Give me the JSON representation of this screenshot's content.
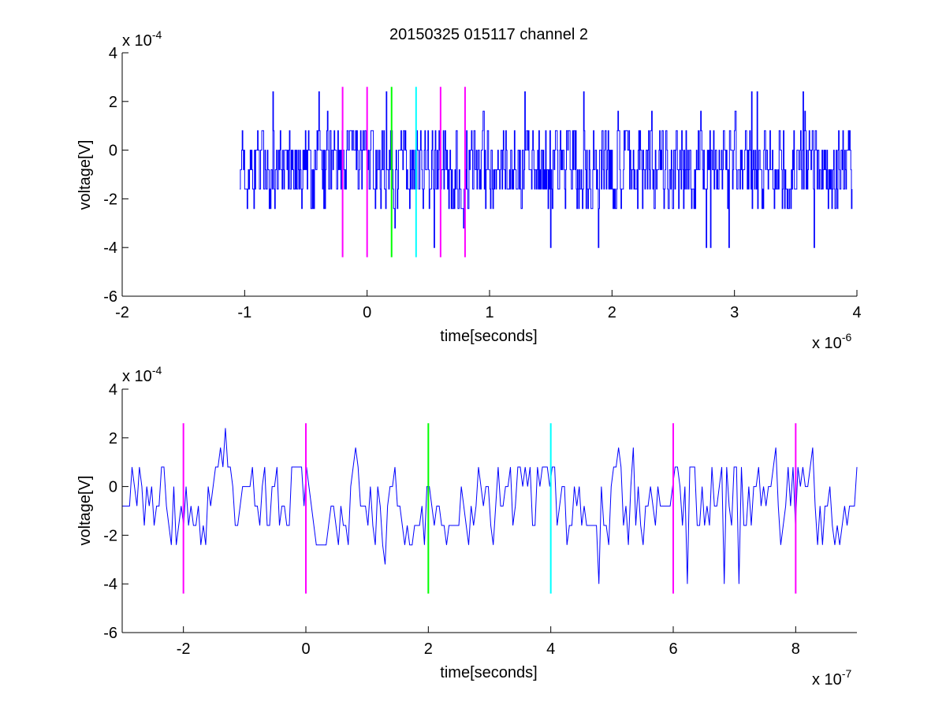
{
  "figure": {
    "title": "20150325 015117 channel 2",
    "colors": {
      "signal": "#0000ff",
      "marker_magenta": "#ff00ff",
      "marker_green": "#00ff00",
      "marker_cyan": "#00ffff",
      "axes": "#000000"
    }
  },
  "chart_data": [
    {
      "type": "line",
      "title": "20150325 015117 channel 2",
      "xlabel": "time[seconds]",
      "ylabel": "voltage[V]",
      "x_exponent_label": "x 10",
      "x_exponent": "-6",
      "y_exponent_label": "x 10",
      "y_exponent": "-4",
      "xlim": [
        -2,
        4
      ],
      "ylim": [
        -6,
        4
      ],
      "xticks": [
        -2,
        -1,
        0,
        1,
        2,
        3,
        4
      ],
      "xtick_labels": [
        "-2",
        "-1",
        "0",
        "1",
        "2",
        "3",
        "4"
      ],
      "yticks": [
        -6,
        -4,
        -2,
        0,
        2,
        4
      ],
      "ytick_labels": [
        "-6",
        "-4",
        "-2",
        "0",
        "2",
        "4"
      ],
      "grid": false,
      "series": [
        {
          "x_start": -1.04,
          "x_end": 3.96,
          "levels": [
            -3.2,
            -2.4,
            -1.6,
            -0.8,
            0,
            0.8,
            1.6,
            2.4
          ],
          "min": -4.0,
          "max": 2.4,
          "points": 1000
        }
      ],
      "markers": [
        {
          "x": -0.2,
          "color": "magenta",
          "y_from": -4.4,
          "y_to": 2.6
        },
        {
          "x": 0.0,
          "color": "magenta",
          "y_from": -4.4,
          "y_to": 2.6
        },
        {
          "x": 0.2,
          "color": "green",
          "y_from": -4.4,
          "y_to": 2.6
        },
        {
          "x": 0.4,
          "color": "cyan",
          "y_from": -4.4,
          "y_to": 2.6
        },
        {
          "x": 0.6,
          "color": "magenta",
          "y_from": -4.4,
          "y_to": 2.6
        },
        {
          "x": 0.8,
          "color": "magenta",
          "y_from": -4.4,
          "y_to": 2.6
        }
      ]
    },
    {
      "type": "line",
      "xlabel": "time[seconds]",
      "ylabel": "voltage[V]",
      "x_exponent_label": "x 10",
      "x_exponent": "-7",
      "y_exponent_label": "x 10",
      "y_exponent": "-4",
      "xlim": [
        -3,
        9
      ],
      "ylim": [
        -6,
        4
      ],
      "xticks": [
        -2,
        0,
        2,
        4,
        6,
        8
      ],
      "xtick_labels": [
        "-2",
        "0",
        "2",
        "4",
        "6",
        "8"
      ],
      "yticks": [
        -6,
        -4,
        -2,
        0,
        2,
        4
      ],
      "ytick_labels": [
        "-6",
        "-4",
        "-2",
        "0",
        "2",
        "4"
      ],
      "grid": false,
      "series": [
        {
          "x_start": -3,
          "x_end": 9,
          "levels": [
            -4.0,
            -3.2,
            -2.4,
            -1.6,
            -0.8,
            0,
            0.8,
            1.6,
            2.4
          ],
          "min": -4.0,
          "max": 2.4,
          "points": 300
        }
      ],
      "markers": [
        {
          "x": -2,
          "color": "magenta",
          "y_from": -4.4,
          "y_to": 2.6
        },
        {
          "x": 0,
          "color": "magenta",
          "y_from": -4.4,
          "y_to": 2.6
        },
        {
          "x": 2,
          "color": "green",
          "y_from": -4.4,
          "y_to": 2.6
        },
        {
          "x": 4,
          "color": "cyan",
          "y_from": -4.4,
          "y_to": 2.6
        },
        {
          "x": 6,
          "color": "magenta",
          "y_from": -4.4,
          "y_to": 2.6
        },
        {
          "x": 8,
          "color": "magenta",
          "y_from": -4.4,
          "y_to": 2.6
        }
      ]
    }
  ]
}
